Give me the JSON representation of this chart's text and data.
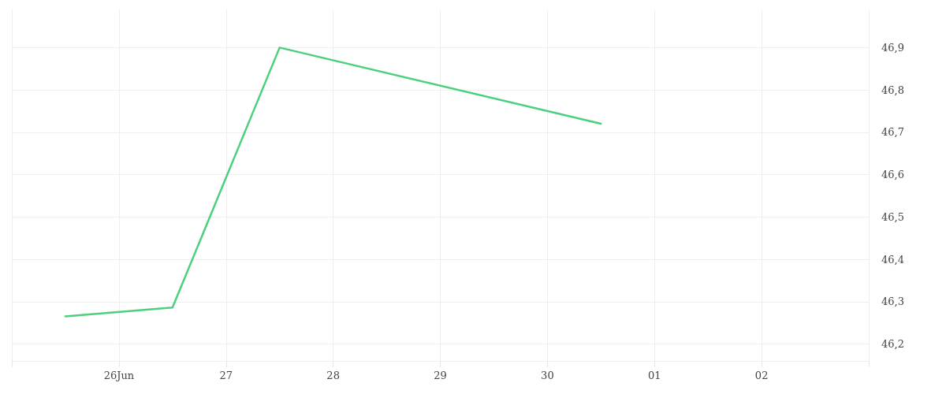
{
  "chart_data": {
    "type": "line",
    "x": [
      "--06-25T12:00",
      "--06-26T12:00",
      "--06-27T12:00",
      "--06-30T12:00"
    ],
    "series": [
      {
        "color": "#4cd07d",
        "values": [
          46.265,
          46.286,
          46.9,
          46.72
        ]
      }
    ],
    "xlim": [
      "--06-25",
      "--07-03"
    ],
    "xticks": [
      {
        "value": "--06-25",
        "label": null
      },
      {
        "value": "--06-26",
        "label": "26Jun"
      },
      {
        "value": "--06-27",
        "label": "27"
      },
      {
        "value": "--06-28",
        "label": "28"
      },
      {
        "value": "--06-29",
        "label": "29"
      },
      {
        "value": "--06-30",
        "label": "30"
      },
      {
        "value": "--07-01",
        "label": "01"
      },
      {
        "value": "--07-02",
        "label": "02"
      },
      {
        "value": "--07-03",
        "label": null
      }
    ],
    "ylim": [
      46.16,
      46.99
    ],
    "yticks": [
      {
        "value": 46.2,
        "label": "46,2"
      },
      {
        "value": 46.3,
        "label": "46,3"
      },
      {
        "value": 46.4,
        "label": "46,4"
      },
      {
        "value": 46.5,
        "label": "46,5"
      },
      {
        "value": 46.6,
        "label": "46,6"
      },
      {
        "value": 46.7,
        "label": "46,7"
      },
      {
        "value": 46.8,
        "label": "46,8"
      },
      {
        "value": 46.9,
        "label": "46,9"
      }
    ],
    "grid": true,
    "marker": "none",
    "line_style": "solid"
  }
}
